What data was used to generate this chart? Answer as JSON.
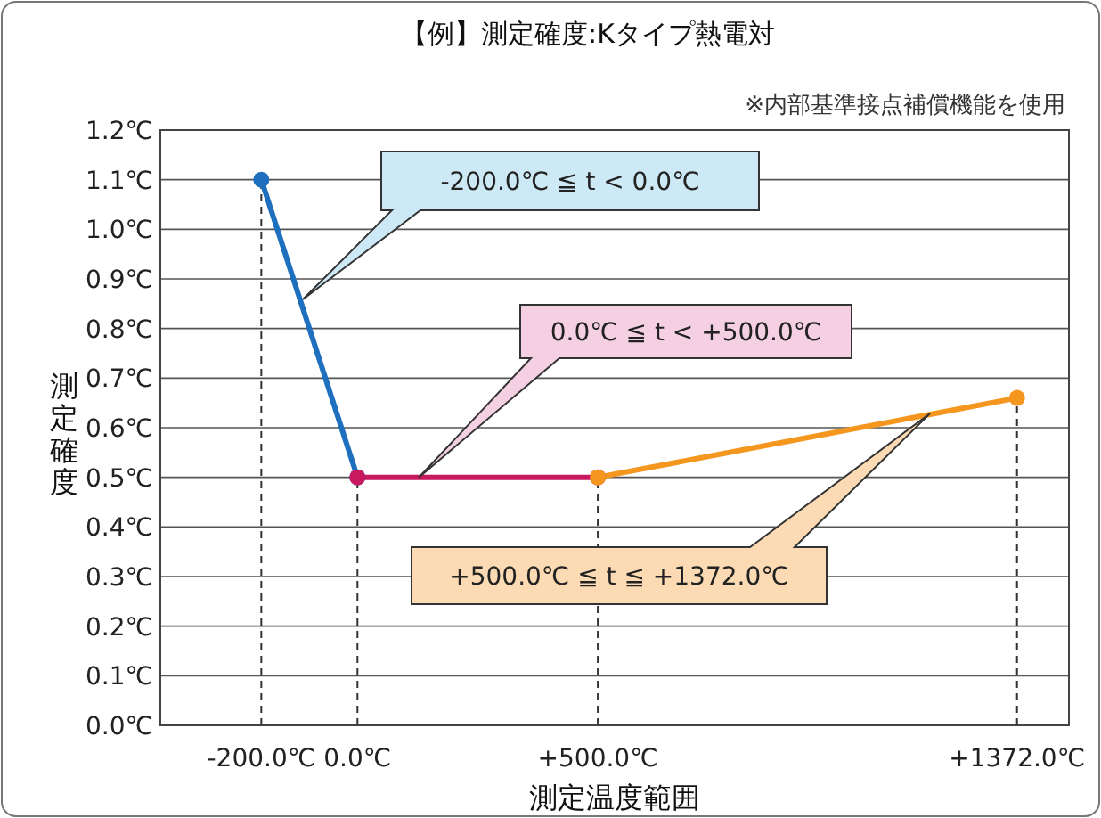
{
  "chart_data": {
    "type": "line",
    "title": "【例】測定確度:Kタイプ熱電対",
    "subtitle": "※内部基準接点補償機能を使用",
    "xlabel": "測定温度範囲",
    "ylabel": "測定確度",
    "series": [
      {
        "color": "#1f6fbf",
        "x": [
          -200,
          0
        ],
        "values": [
          1.1,
          0.5
        ]
      },
      {
        "color": "#c8185e",
        "x": [
          0,
          500
        ],
        "values": [
          0.5,
          0.5
        ]
      },
      {
        "color": "#f5961e",
        "x": [
          500,
          1372
        ],
        "values": [
          0.5,
          0.66
        ]
      }
    ],
    "marker": "circle",
    "line_style": "solid",
    "grid": "y",
    "xlim": [
      -410,
      1480
    ],
    "xticks": [
      {
        "value": -200,
        "label": "-200.0℃"
      },
      {
        "value": 0,
        "label": "0.0℃"
      },
      {
        "value": 500,
        "label": "+500.0℃"
      },
      {
        "value": 1372,
        "label": "+1372.0℃"
      }
    ],
    "ylim": [
      0,
      1.2
    ],
    "yticks": [
      {
        "value": 0,
        "label": "0.0℃"
      },
      {
        "value": 0.1,
        "label": "0.1℃"
      },
      {
        "value": 0.2,
        "label": "0.2℃"
      },
      {
        "value": 0.3,
        "label": "0.3℃"
      },
      {
        "value": 0.4,
        "label": "0.4℃"
      },
      {
        "value": 0.5,
        "label": "0.5℃"
      },
      {
        "value": 0.6,
        "label": "0.6℃"
      },
      {
        "value": 0.7,
        "label": "0.7℃"
      },
      {
        "value": 0.8,
        "label": "0.8℃"
      },
      {
        "value": 0.9,
        "label": "0.9℃"
      },
      {
        "value": 1.0,
        "label": "1.0℃"
      },
      {
        "value": 1.1,
        "label": "1.1℃"
      },
      {
        "value": 1.2,
        "label": "1.2℃"
      }
    ],
    "ref_lines": [
      {
        "axis": "x",
        "value": -200,
        "color": "#333333",
        "line_style": "dashed"
      },
      {
        "axis": "x",
        "value": 0,
        "color": "#333333",
        "line_style": "dashed"
      },
      {
        "axis": "x",
        "value": 500,
        "color": "#333333",
        "line_style": "dashed"
      },
      {
        "axis": "x",
        "value": 1372,
        "color": "#333333",
        "line_style": "dashed"
      }
    ],
    "annotations": [
      "-200.0℃ ≦ t < 0.0℃",
      "0.0℃ ≦ t < +500.0℃",
      "+500.0℃ ≦ t ≦ +1372.0℃"
    ]
  }
}
